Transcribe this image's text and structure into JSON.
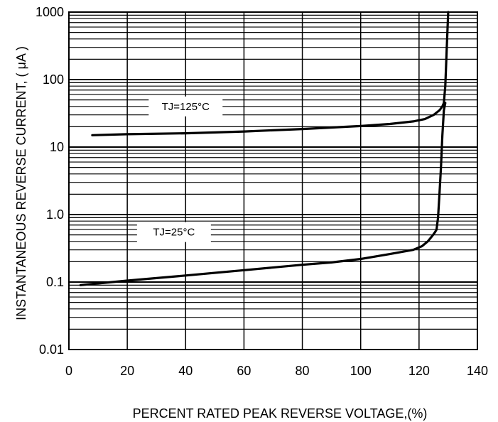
{
  "chart_data": {
    "type": "line",
    "xlabel": "PERCENT RATED PEAK REVERSE VOLTAGE,(%)",
    "ylabel": "INSTANTANEOUS REVERSE CURRENT, ( μA )",
    "x_scale": "linear",
    "y_scale": "log",
    "xlim": [
      0,
      140
    ],
    "ylim": [
      0.01,
      1000
    ],
    "grid": true,
    "x_ticks": [
      0,
      20,
      40,
      60,
      80,
      100,
      120,
      140
    ],
    "x_tick_labels": [
      "0",
      "20",
      "40",
      "60",
      "80",
      "100",
      "120",
      "140"
    ],
    "y_ticks": [
      0.01,
      0.1,
      1,
      10,
      100,
      1000
    ],
    "y_tick_labels": [
      "0.01",
      "0.1",
      "1.0",
      "10",
      "100",
      "1000"
    ],
    "series": [
      {
        "name": "TJ=125°C",
        "label_at": [
          40,
          40
        ],
        "x": [
          8,
          20,
          40,
          60,
          80,
          100,
          110,
          118,
          122,
          125,
          127,
          128,
          128.5,
          129,
          129.5,
          130
        ],
        "y": [
          15,
          15.5,
          16,
          17,
          18.5,
          20.5,
          22,
          24,
          26,
          30,
          35,
          40,
          45,
          80,
          300,
          1000
        ]
      },
      {
        "name": "TJ=25°C",
        "label_at": [
          36,
          0.55
        ],
        "x": [
          4,
          20,
          40,
          60,
          80,
          90,
          100,
          110,
          118,
          121,
          123,
          124.5,
          125.5,
          126,
          126.5,
          127,
          127.5,
          128,
          128.5,
          129
        ],
        "y": [
          0.09,
          0.105,
          0.125,
          0.15,
          0.18,
          0.195,
          0.22,
          0.26,
          0.3,
          0.34,
          0.4,
          0.48,
          0.55,
          0.6,
          0.9,
          2,
          5,
          15,
          35,
          45
        ]
      }
    ]
  }
}
